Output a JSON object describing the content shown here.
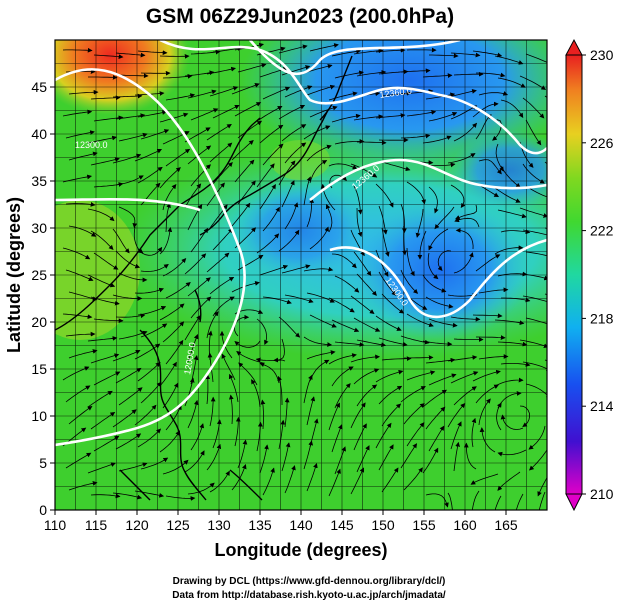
{
  "title": "GSM 06Z29Jun2023 (200.0hPa)",
  "x_axis": {
    "label": "Longitude (degrees)",
    "ticks": [
      "110",
      "115",
      "120",
      "125",
      "130",
      "135",
      "140",
      "145",
      "150",
      "155",
      "160",
      "165"
    ],
    "range": [
      110,
      170
    ]
  },
  "y_axis": {
    "label": "Latitude  (degrees)",
    "ticks": [
      "0",
      "5",
      "10",
      "15",
      "20",
      "25",
      "30",
      "35",
      "40",
      "45"
    ],
    "range": [
      0,
      50
    ]
  },
  "colorbar": {
    "labels": [
      "230",
      "226",
      "222",
      "218",
      "214",
      "210"
    ],
    "range": [
      210,
      230
    ]
  },
  "contour_labels": [
    "12360.0",
    "12360.0",
    "12300.0",
    "12300.0",
    "12000.0"
  ],
  "credits": {
    "line1": "Drawing by DCL (https://www.gfd-dennou.org/library/dcl/)",
    "line2": "Data from http://database.rish.kyoto-u.ac.jp/arch/jmadata/"
  },
  "colors": {
    "warm": "#e33a2a",
    "green": "#3fd02a",
    "cyan": "#20c8c8",
    "blue": "#2a7bf0",
    "contour": "#ffffff"
  }
}
